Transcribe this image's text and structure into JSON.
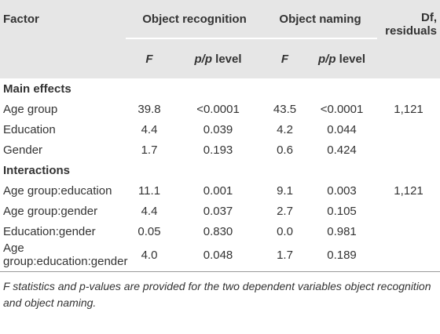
{
  "header": {
    "factor": "Factor",
    "groups": [
      "Object recognition",
      "Object naming"
    ],
    "df": "Df, residuals"
  },
  "subheader": [
    {
      "stat": "F"
    },
    {
      "stat": "p/p",
      "label": "level"
    },
    {
      "stat": "F"
    },
    {
      "stat": "p/p",
      "label": "level"
    }
  ],
  "sections": [
    {
      "title": "Main effects",
      "rows": [
        [
          "Age group",
          "39.8",
          "<0.0001",
          "43.5",
          "<0.0001",
          "1,121"
        ],
        [
          "Education",
          "4.4",
          "0.039",
          "4.2",
          "0.044",
          null
        ],
        [
          "Gender",
          "1.7",
          "0.193",
          "0.6",
          "0.424",
          null
        ]
      ]
    },
    {
      "title": "Interactions",
      "rows": [
        [
          "Age group:education",
          "11.1",
          "0.001",
          "9.1",
          "0.003",
          "1,121"
        ],
        [
          "Age group:gender",
          "4.4",
          "0.037",
          "2.7",
          "0.105",
          null
        ],
        [
          "Education:gender",
          "0.05",
          "0.830",
          "0.0",
          "0.981",
          null
        ],
        [
          "Age group:education:gender",
          "4.0",
          "0.048",
          "1.7",
          "0.189",
          null
        ]
      ]
    }
  ],
  "footnote": "F statistics and p-values are provided for the two dependent variables object recognition and object naming."
}
